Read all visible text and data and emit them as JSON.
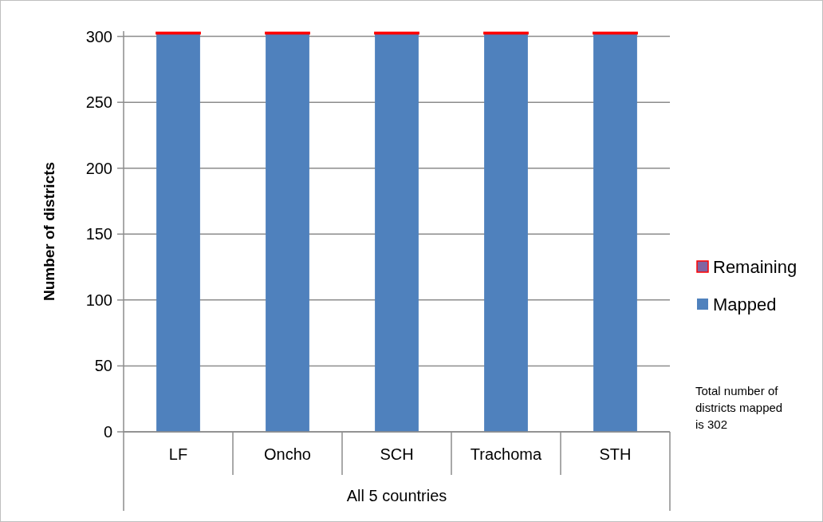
{
  "chart_data": {
    "type": "bar",
    "stacked": true,
    "ylabel": "Number of districts",
    "xlabel": "All 5 countries",
    "categories": [
      "LF",
      "Oncho",
      "SCH",
      "Trachoma",
      "STH"
    ],
    "series": [
      {
        "name": "Mapped",
        "color": "#4f81bd",
        "values": [
          302,
          302,
          302,
          302,
          302
        ]
      },
      {
        "name": "Remaining",
        "color": "#8064a2",
        "values": [
          1,
          1,
          1,
          1,
          1
        ]
      }
    ],
    "ylim": [
      0,
      304
    ],
    "yticks": [
      0,
      50,
      100,
      150,
      200,
      250,
      300
    ],
    "grid": "y",
    "legend": "right",
    "annotations": [
      "Total number of districts mapped is 302"
    ]
  }
}
